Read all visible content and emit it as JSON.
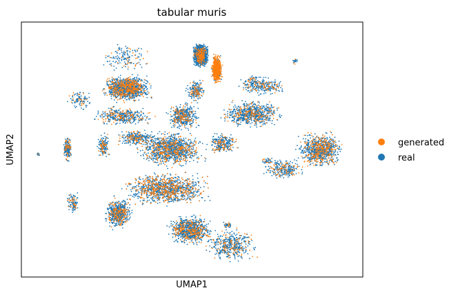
{
  "chart_data": {
    "type": "scatter",
    "title": "tabular muris",
    "xlabel": "UMAP1",
    "ylabel": "UMAP2",
    "xlim": [
      0,
      100
    ],
    "ylim": [
      0,
      100
    ],
    "grid": false,
    "ticks": false,
    "legend_placement": "right",
    "series": [
      {
        "name": "generated",
        "color": "#ff7f0e"
      },
      {
        "name": "real",
        "color": "#1f77b4"
      }
    ],
    "clusters": [
      {
        "x": [
          50,
          55
        ],
        "y": [
          82,
          92
        ],
        "real": 1500,
        "generated": 150
      },
      {
        "x": [
          55.5,
          59
        ],
        "y": [
          75,
          88
        ],
        "real": 120,
        "generated": 560
      },
      {
        "x": [
          23,
          39
        ],
        "y": [
          68,
          80
        ],
        "real": 900,
        "generated": 350
      },
      {
        "x": [
          20,
          40
        ],
        "y": [
          59,
          67
        ],
        "real": 300,
        "generated": 100
      },
      {
        "x": [
          42,
          53
        ],
        "y": [
          57,
          69
        ],
        "real": 350,
        "generated": 100
      },
      {
        "x": [
          57,
          78
        ],
        "y": [
          58,
          70
        ],
        "real": 550,
        "generated": 150
      },
      {
        "x": [
          63,
          74
        ],
        "y": [
          71,
          80
        ],
        "real": 150,
        "generated": 40
      },
      {
        "x": [
          80,
          95
        ],
        "y": [
          42,
          58
        ],
        "real": 650,
        "generated": 260
      },
      {
        "x": [
          70,
          84
        ],
        "y": [
          38,
          47
        ],
        "real": 200,
        "generated": 60
      },
      {
        "x": [
          33,
          55
        ],
        "y": [
          42,
          58
        ],
        "real": 850,
        "generated": 300
      },
      {
        "x": [
          27,
          40
        ],
        "y": [
          51,
          58
        ],
        "real": 200,
        "generated": 70
      },
      {
        "x": [
          54,
          64
        ],
        "y": [
          48,
          57
        ],
        "real": 200,
        "generated": 70
      },
      {
        "x": [
          28,
          57
        ],
        "y": [
          27,
          42
        ],
        "real": 1100,
        "generated": 400
      },
      {
        "x": [
          12,
          15
        ],
        "y": [
          44,
          57
        ],
        "real": 130,
        "generated": 40
      },
      {
        "x": [
          22,
          26
        ],
        "y": [
          46,
          57
        ],
        "real": 120,
        "generated": 40
      },
      {
        "x": [
          13,
          17
        ],
        "y": [
          24,
          34
        ],
        "real": 80,
        "generated": 25
      },
      {
        "x": [
          24,
          33
        ],
        "y": [
          18,
          32
        ],
        "real": 450,
        "generated": 140
      },
      {
        "x": [
          42,
          57
        ],
        "y": [
          12,
          25
        ],
        "real": 650,
        "generated": 220
      },
      {
        "x": [
          53,
          70
        ],
        "y": [
          5,
          20
        ],
        "real": 350,
        "generated": 100
      },
      {
        "x": [
          22,
          39
        ],
        "y": [
          80,
          92
        ],
        "real": 120,
        "generated": 30
      },
      {
        "x": [
          13,
          21
        ],
        "y": [
          65,
          74
        ],
        "real": 80,
        "generated": 20
      },
      {
        "x": [
          48,
          54
        ],
        "y": [
          68,
          78
        ],
        "real": 150,
        "generated": 50
      },
      {
        "x": [
          68,
          78
        ],
        "y": [
          71,
          78
        ],
        "real": 100,
        "generated": 30
      },
      {
        "x": [
          79,
          81
        ],
        "y": [
          83,
          86
        ],
        "real": 15,
        "generated": 3
      },
      {
        "x": [
          4,
          6
        ],
        "y": [
          47,
          49
        ],
        "real": 10,
        "generated": 2
      },
      {
        "x": [
          59,
          62
        ],
        "y": [
          19,
          22
        ],
        "real": 30,
        "generated": 8
      },
      {
        "x": [
          70,
          74
        ],
        "y": [
          44,
          47
        ],
        "real": 30,
        "generated": 8
      }
    ]
  }
}
